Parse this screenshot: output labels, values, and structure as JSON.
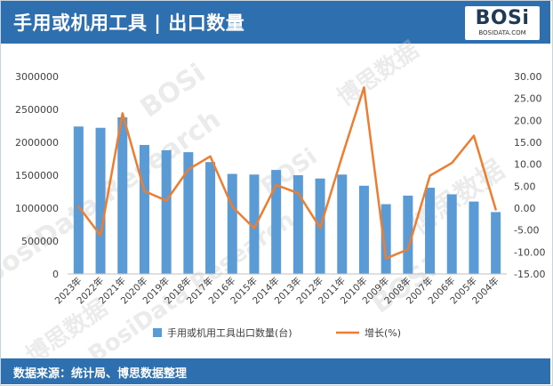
{
  "header": {
    "title": "手用或机用工具 | 出口数量",
    "logo_text": "BOSi",
    "logo_sub": "BOSIDATA.COM"
  },
  "footer": {
    "source": "数据来源：统计局、博思数据整理"
  },
  "colors": {
    "header_bg": "#2e6fb0",
    "bar": "#5b9bd5",
    "line": "#ed7d31"
  },
  "chart_data": {
    "type": "bar+line",
    "categories": [
      "2023年",
      "2022年",
      "2021年",
      "2020年",
      "2019年",
      "2018年",
      "2017年",
      "2016年",
      "2015年",
      "2014年",
      "2013年",
      "2012年",
      "2011年",
      "2010年",
      "2009年",
      "2008年",
      "2007年",
      "2006年",
      "2005年",
      "2004年"
    ],
    "series": [
      {
        "name": "手用或机用工具出口数量(台)",
        "type": "bar",
        "axis": "left",
        "values": [
          2240000,
          2220000,
          2380000,
          1960000,
          1880000,
          1850000,
          1700000,
          1520000,
          1510000,
          1580000,
          1500000,
          1450000,
          1510000,
          1340000,
          1060000,
          1190000,
          1310000,
          1210000,
          1100000,
          940000
        ]
      },
      {
        "name": "增长(%)",
        "type": "line",
        "axis": "right",
        "values": [
          0.4,
          -6.2,
          21.6,
          3.9,
          1.7,
          8.8,
          11.8,
          0.3,
          -4.6,
          5.3,
          3.4,
          -4.5,
          11.8,
          27.5,
          -11.5,
          -9.4,
          7.4,
          10.3,
          16.5,
          -0.3
        ]
      }
    ],
    "y_left": {
      "min": 0,
      "max": 3000000,
      "ticks": [
        "0",
        "500000",
        "1000000",
        "1500000",
        "2000000",
        "2500000",
        "3000000"
      ]
    },
    "y_right": {
      "min": -15,
      "max": 30,
      "ticks": [
        "-15.00",
        "-10.00",
        "-5.00",
        "0.00",
        "5.00",
        "10.00",
        "15.00",
        "20.00",
        "25.00",
        "30.00"
      ]
    },
    "legend_position": "bottom",
    "grid": false,
    "watermark_text": [
      "BOSi",
      "博思数据",
      "BosiData Research"
    ]
  }
}
